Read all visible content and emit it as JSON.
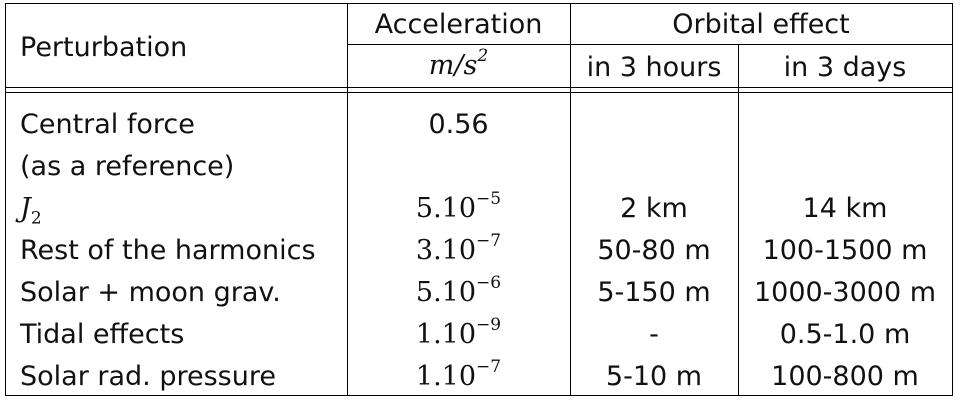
{
  "header": {
    "perturbation": "Perturbation",
    "acceleration": "Acceleration",
    "acceleration_unit_base": "m/s",
    "acceleration_unit_exp": "2",
    "orbital_effect": "Orbital effect",
    "in_3_hours": "in 3 hours",
    "in_3_days": "in 3 days"
  },
  "rows": [
    {
      "perturbation": "Central force",
      "acceleration": "0.56",
      "hours": "",
      "days": ""
    },
    {
      "perturbation": "(as a reference)",
      "acceleration": "",
      "hours": "",
      "days": ""
    },
    {
      "perturbation_sym": "J",
      "perturbation_sub": "2",
      "acc_base": "5.10",
      "acc_exp": "−5",
      "hours": "2 km",
      "days": "14 km"
    },
    {
      "perturbation": "Rest of the harmonics",
      "acc_base": "3.10",
      "acc_exp": "−7",
      "hours": "50-80 m",
      "days": "100-1500 m"
    },
    {
      "perturbation": "Solar + moon grav.",
      "acc_base": "5.10",
      "acc_exp": "−6",
      "hours": "5-150 m",
      "days": "1000-3000 m"
    },
    {
      "perturbation": "Tidal effects",
      "acc_base": "1.10",
      "acc_exp": "−9",
      "hours": "-",
      "days": "0.5-1.0 m"
    },
    {
      "perturbation": "Solar rad. pressure",
      "acc_base": "1.10",
      "acc_exp": "−7",
      "hours": "5-10 m",
      "days": "100-800 m"
    }
  ]
}
